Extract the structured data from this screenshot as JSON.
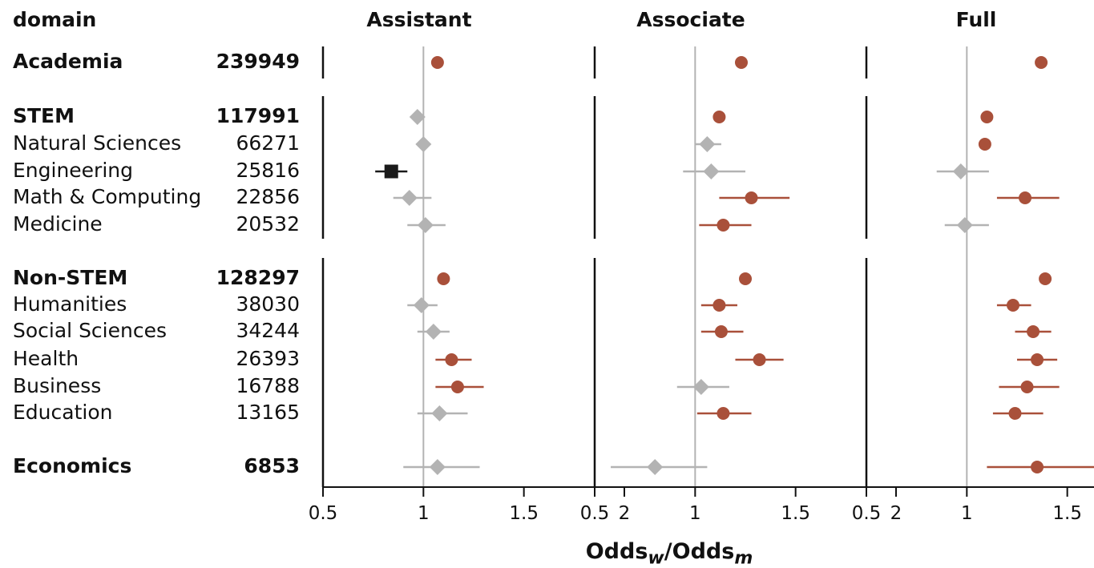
{
  "header": {
    "domain_label": "domain",
    "panels": [
      "Assistant",
      "Associate",
      "Full"
    ]
  },
  "x_title": {
    "main": "Odds",
    "sub_w": "w",
    "slash": "/",
    "main2": "Odds",
    "sub_m": "m"
  },
  "rows": [
    {
      "label": "Academia",
      "n": "239949",
      "bold": true
    },
    {
      "label": "STEM",
      "n": "117991",
      "bold": true
    },
    {
      "label": "Natural Sciences",
      "n": "66271",
      "bold": false
    },
    {
      "label": "Engineering",
      "n": "25816",
      "bold": false
    },
    {
      "label": "Math & Computing",
      "n": "22856",
      "bold": false
    },
    {
      "label": "Medicine",
      "n": "20532",
      "bold": false
    },
    {
      "label": "Non-STEM",
      "n": "128297",
      "bold": true
    },
    {
      "label": "Humanities",
      "n": "38030",
      "bold": false
    },
    {
      "label": "Social Sciences",
      "n": "34244",
      "bold": false
    },
    {
      "label": "Health",
      "n": "26393",
      "bold": false
    },
    {
      "label": "Business",
      "n": "16788",
      "bold": false
    },
    {
      "label": "Education",
      "n": "13165",
      "bold": false
    },
    {
      "label": "Economics",
      "n": "6853",
      "bold": true
    }
  ],
  "colors": {
    "above": "#a9503a",
    "neutral": "#b3b3b3",
    "below": "#1a1a1a",
    "refline": "#b3b3b3",
    "axis": "#111111"
  },
  "chart_data": {
    "type": "scatter",
    "xlabel": "Odds_w/Odds_m",
    "xlim": [
      0.5,
      2
    ],
    "xticks": [
      "0.5",
      "1",
      "1.5",
      "2"
    ],
    "reference_x": 1,
    "categories": [
      "Academia",
      "STEM",
      "Natural Sciences",
      "Engineering",
      "Math & Computing",
      "Medicine",
      "Non-STEM",
      "Humanities",
      "Social Sciences",
      "Health",
      "Business",
      "Education",
      "Economics"
    ],
    "panels": [
      {
        "name": "Assistant",
        "points": [
          {
            "v": 1.07,
            "lo": null,
            "hi": null,
            "kind": "above"
          },
          {
            "v": 0.97,
            "lo": null,
            "hi": null,
            "kind": "neutral"
          },
          {
            "v": 1.0,
            "lo": null,
            "hi": null,
            "kind": "neutral"
          },
          {
            "v": 0.84,
            "lo": 0.76,
            "hi": 0.92,
            "kind": "below"
          },
          {
            "v": 0.93,
            "lo": 0.85,
            "hi": 1.04,
            "kind": "neutral"
          },
          {
            "v": 1.01,
            "lo": 0.92,
            "hi": 1.11,
            "kind": "neutral"
          },
          {
            "v": 1.1,
            "lo": null,
            "hi": null,
            "kind": "above"
          },
          {
            "v": 0.99,
            "lo": 0.92,
            "hi": 1.07,
            "kind": "neutral"
          },
          {
            "v": 1.05,
            "lo": 0.97,
            "hi": 1.13,
            "kind": "neutral"
          },
          {
            "v": 1.14,
            "lo": 1.06,
            "hi": 1.24,
            "kind": "above"
          },
          {
            "v": 1.17,
            "lo": 1.06,
            "hi": 1.3,
            "kind": "above"
          },
          {
            "v": 1.08,
            "lo": 0.97,
            "hi": 1.22,
            "kind": "neutral"
          },
          {
            "v": 1.07,
            "lo": 0.9,
            "hi": 1.28,
            "kind": "neutral"
          }
        ]
      },
      {
        "name": "Associate",
        "points": [
          {
            "v": 1.23,
            "lo": null,
            "hi": null,
            "kind": "above"
          },
          {
            "v": 1.12,
            "lo": null,
            "hi": null,
            "kind": "above"
          },
          {
            "v": 1.06,
            "lo": 1.0,
            "hi": 1.13,
            "kind": "neutral"
          },
          {
            "v": 1.08,
            "lo": 0.94,
            "hi": 1.25,
            "kind": "neutral"
          },
          {
            "v": 1.28,
            "lo": 1.12,
            "hi": 1.47,
            "kind": "above"
          },
          {
            "v": 1.14,
            "lo": 1.02,
            "hi": 1.28,
            "kind": "above"
          },
          {
            "v": 1.25,
            "lo": null,
            "hi": null,
            "kind": "above"
          },
          {
            "v": 1.12,
            "lo": 1.03,
            "hi": 1.21,
            "kind": "above"
          },
          {
            "v": 1.13,
            "lo": 1.03,
            "hi": 1.24,
            "kind": "above"
          },
          {
            "v": 1.32,
            "lo": 1.2,
            "hi": 1.44,
            "kind": "above"
          },
          {
            "v": 1.03,
            "lo": 0.91,
            "hi": 1.17,
            "kind": "neutral"
          },
          {
            "v": 1.14,
            "lo": 1.01,
            "hi": 1.28,
            "kind": "above"
          },
          {
            "v": 0.8,
            "lo": 0.58,
            "hi": 1.06,
            "kind": "neutral"
          }
        ]
      },
      {
        "name": "Full",
        "points": [
          {
            "v": 1.37,
            "lo": null,
            "hi": null,
            "kind": "above"
          },
          {
            "v": 1.1,
            "lo": null,
            "hi": null,
            "kind": "above"
          },
          {
            "v": 1.09,
            "lo": null,
            "hi": null,
            "kind": "above"
          },
          {
            "v": 0.97,
            "lo": 0.85,
            "hi": 1.11,
            "kind": "neutral"
          },
          {
            "v": 1.29,
            "lo": 1.15,
            "hi": 1.46,
            "kind": "above"
          },
          {
            "v": 0.99,
            "lo": 0.89,
            "hi": 1.11,
            "kind": "neutral"
          },
          {
            "v": 1.39,
            "lo": null,
            "hi": null,
            "kind": "above"
          },
          {
            "v": 1.23,
            "lo": 1.15,
            "hi": 1.32,
            "kind": "above"
          },
          {
            "v": 1.33,
            "lo": 1.24,
            "hi": 1.42,
            "kind": "above"
          },
          {
            "v": 1.35,
            "lo": 1.25,
            "hi": 1.45,
            "kind": "above"
          },
          {
            "v": 1.3,
            "lo": 1.16,
            "hi": 1.46,
            "kind": "above"
          },
          {
            "v": 1.24,
            "lo": 1.13,
            "hi": 1.38,
            "kind": "above"
          },
          {
            "v": 1.35,
            "lo": 1.1,
            "hi": 1.66,
            "kind": "above"
          }
        ]
      }
    ]
  }
}
